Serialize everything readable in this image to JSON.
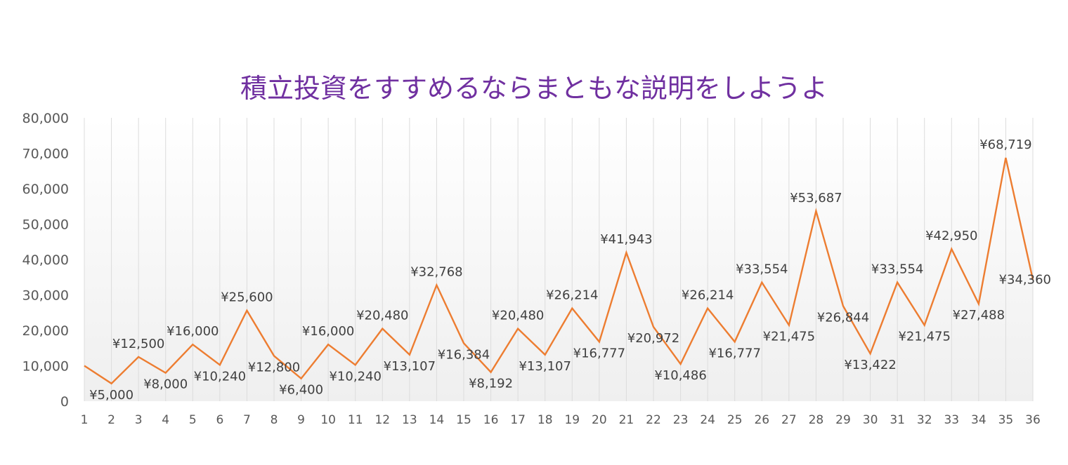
{
  "chart_data": {
    "type": "line",
    "title": "積立投資をすすめるならまともな説明をしようよ",
    "xlabel": "",
    "ylabel": "",
    "ylim": [
      0,
      80000
    ],
    "yticks": [
      "0",
      "10,000",
      "20,000",
      "30,000",
      "40,000",
      "50,000",
      "60,000",
      "70,000",
      "80,000"
    ],
    "grid": "vertical",
    "legend": "none",
    "line_color": "#ed7d31",
    "categories": [
      "1",
      "2",
      "3",
      "4",
      "5",
      "6",
      "7",
      "8",
      "9",
      "10",
      "11",
      "12",
      "13",
      "14",
      "15",
      "16",
      "17",
      "18",
      "19",
      "20",
      "21",
      "22",
      "23",
      "24",
      "25",
      "26",
      "27",
      "28",
      "29",
      "30",
      "31",
      "32",
      "33",
      "34",
      "35",
      "36"
    ],
    "values": [
      10000,
      5000,
      12500,
      8000,
      16000,
      10240,
      25600,
      12800,
      6400,
      16000,
      10240,
      20480,
      13107,
      32768,
      16384,
      8192,
      20480,
      13107,
      26214,
      16777,
      41943,
      20972,
      10486,
      26214,
      16777,
      33554,
      21475,
      53687,
      26844,
      13422,
      33554,
      21475,
      42950,
      27488,
      68719,
      34360
    ],
    "data_labels": [
      "",
      "¥5,000",
      "¥12,500",
      "¥8,000",
      "¥16,000",
      "¥10,240",
      "¥25,600",
      "¥12,800",
      "¥6,400",
      "¥16,000",
      "¥10,240",
      "¥20,480",
      "¥13,107",
      "¥32,768",
      "¥16,384",
      "¥8,192",
      "¥20,480",
      "¥13,107",
      "¥26,214",
      "¥16,777",
      "¥41,943",
      "¥20,972",
      "¥10,486",
      "¥26,214",
      "¥16,777",
      "¥33,554",
      "¥21,475",
      "¥53,687",
      "¥26,844",
      "¥13,422",
      "¥33,554",
      "¥21,475",
      "¥42,950",
      "¥27,488",
      "¥68,719",
      "¥34,360"
    ]
  }
}
